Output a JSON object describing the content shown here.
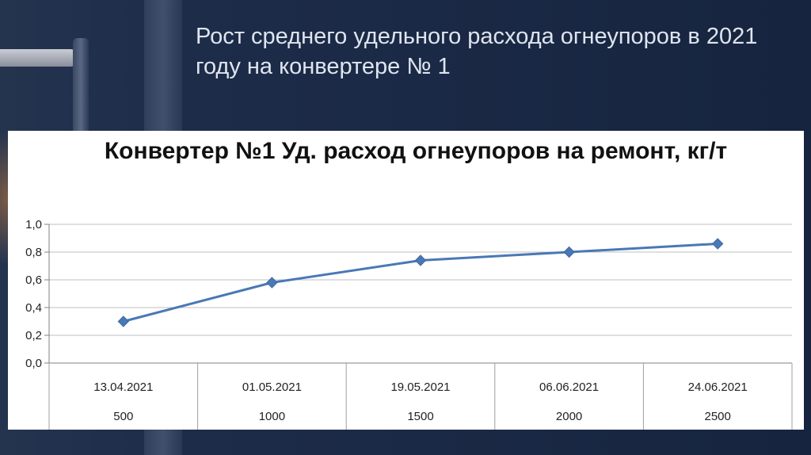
{
  "slide": {
    "title": "Рост среднего удельного расхода огнеупоров в 2021 году на конвертере № 1"
  },
  "colors": {
    "background": "#1b2a47",
    "series": "#4a78b5",
    "grid": "#bfbfbf"
  },
  "chart_data": {
    "type": "line",
    "title": "Конвертер №1 Уд. расход огнеупоров на ремонт, кг/т",
    "xlabel": "",
    "ylabel": "",
    "x": [
      "13.04.2021",
      "01.05.2021",
      "19.05.2021",
      "06.06.2021",
      "24.06.2021"
    ],
    "x_secondary": [
      "500",
      "1000",
      "1500",
      "2000",
      "2500"
    ],
    "series": [
      {
        "values": [
          0.3,
          0.58,
          0.74,
          0.8,
          0.86
        ]
      }
    ],
    "ylim": [
      0,
      1.0
    ],
    "yticks": [
      0.0,
      0.2,
      0.4,
      0.6,
      0.8,
      1.0
    ],
    "ytick_labels": [
      "0,0",
      "0,2",
      "0,4",
      "0,6",
      "0,8",
      "1,0"
    ],
    "marker": "diamond",
    "grid": true,
    "legend": "none"
  }
}
